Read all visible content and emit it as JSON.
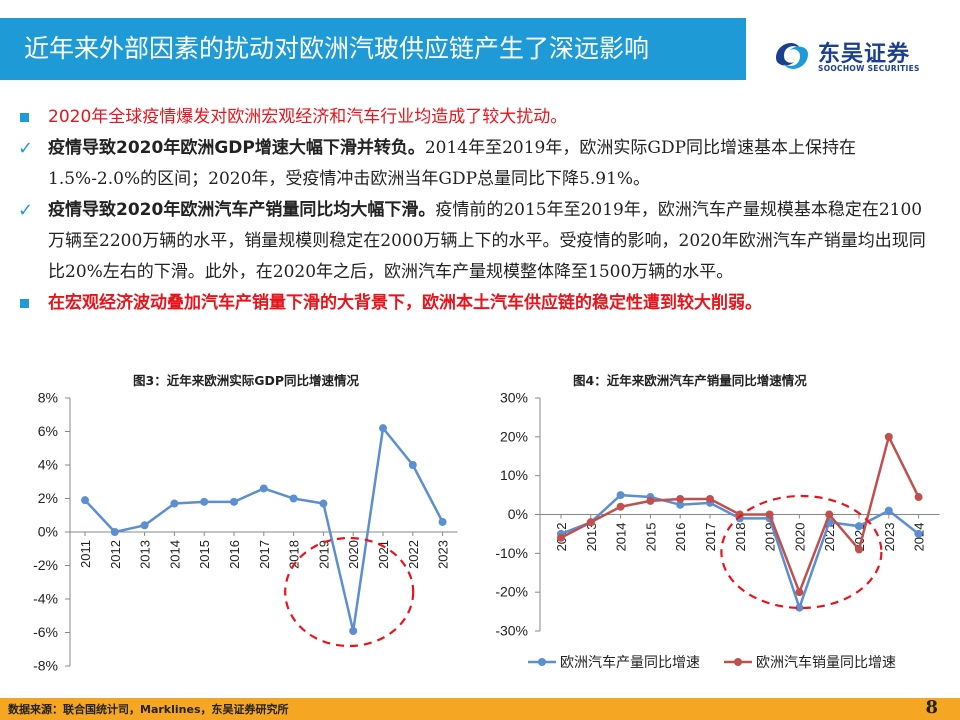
{
  "header": {
    "title": "近年来外部因素的扰动对欧洲汽玻供应链产生了深远影响"
  },
  "logo": {
    "name_cn": "东吴证券",
    "name_en": "SOOCHOW SECURITIES"
  },
  "bullets": {
    "b1": "2020年全球疫情爆发对欧洲宏观经济和汽车行业均造成了较大扰动。",
    "b2_bold": "疫情导致2020年欧洲GDP增速大幅下滑并转负。",
    "b2_rest": "2014年至2019年，欧洲实际GDP同比增速基本上保持在1.5%-2.0%的区间；2020年，受疫情冲击欧洲当年GDP总量同比下降5.91%。",
    "b3_bold": "疫情导致2020年欧洲汽车产销量同比均大幅下滑。",
    "b3_rest": "疫情前的2015年至2019年，欧洲汽车产量规模基本稳定在2100万辆至2200万辆的水平，销量规模则稳定在2000万辆上下的水平。受疫情的影响，2020年欧洲汽车产销量均出现同比20%左右的下滑。此外，在2020年之后，欧洲汽车产量规模整体降至1500万辆的水平。",
    "b4": "在宏观经济波动叠加汽车产销量下滑的大背景下，欧洲本土汽车供应链的稳定性遭到较大削弱。"
  },
  "chart_data": [
    {
      "type": "line",
      "title": "图3：近年来欧洲实际GDP同比增速情况",
      "categories": [
        "2011",
        "2012",
        "2013",
        "2014",
        "2015",
        "2016",
        "2017",
        "2018",
        "2019",
        "2020",
        "2021",
        "2022",
        "2023"
      ],
      "y_tick_labels": [
        "8%",
        "6%",
        "4%",
        "2%",
        "0%",
        "-2%",
        "-4%",
        "-6%",
        "-8%"
      ],
      "ylim": [
        -8,
        8
      ],
      "grid": false,
      "series": [
        {
          "values": [
            1.9,
            0.0,
            0.4,
            1.7,
            1.8,
            1.8,
            2.6,
            2.0,
            1.7,
            -5.91,
            6.2,
            4.0,
            0.6
          ],
          "color": "#5B8FCF"
        }
      ],
      "highlight": {
        "shape": "dashed-ellipse",
        "around": "2020",
        "color": "#E8141C"
      }
    },
    {
      "type": "line",
      "title": "图4：近年来欧洲汽车产销量同比增速情况",
      "categories": [
        "2012",
        "2013",
        "2014",
        "2015",
        "2016",
        "2017",
        "2018",
        "2019",
        "2020",
        "2021",
        "2022",
        "2023",
        "2024"
      ],
      "y_tick_labels": [
        "30%",
        "20%",
        "10%",
        "0%",
        "-10%",
        "-20%",
        "-30%"
      ],
      "ylim": [
        -30,
        30
      ],
      "grid": false,
      "legend": "bottom",
      "series": [
        {
          "name": "欧洲汽车产量同比增速",
          "color": "#5B8FCF",
          "values": [
            -5,
            -2,
            5,
            4.5,
            2.5,
            3,
            -1,
            -1,
            -24,
            -2,
            -3,
            1,
            -5
          ]
        },
        {
          "name": "欧洲汽车销量同比增速",
          "color": "#C0504D",
          "values": [
            -6,
            -2,
            2,
            3.5,
            4,
            4,
            0,
            0,
            -20,
            0,
            -9,
            20,
            4.5
          ]
        }
      ],
      "highlight": {
        "shape": "dashed-ellipse",
        "around": "2020",
        "color": "#E8141C"
      }
    }
  ],
  "footer": {
    "source": "数据来源：联合国统计司，Marklines，东吴证券研究所",
    "page": "8"
  }
}
